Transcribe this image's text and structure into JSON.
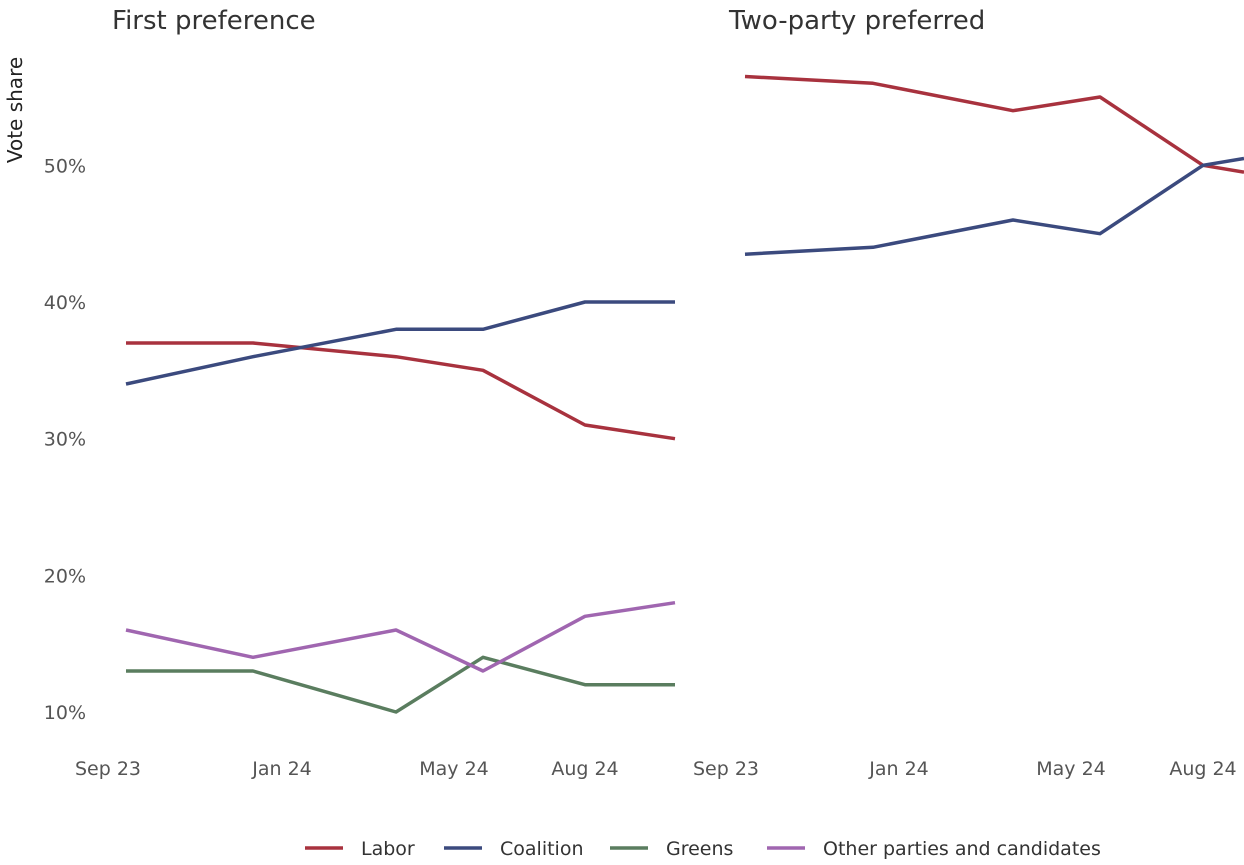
{
  "chart_data": [
    {
      "type": "line",
      "title": "First preference",
      "ylabel": "Vote share",
      "x_ticks": [
        "Sep 23",
        "Jan 24",
        "May 24",
        "Aug 24"
      ],
      "y_ticks": [
        "10%",
        "20%",
        "30%",
        "40%",
        "50%"
      ],
      "ylim": [
        9,
        58
      ],
      "grid": false,
      "series": [
        {
          "name": "Labor",
          "color": "#a8323e",
          "points": [
            [
              "2023-09-01",
              37
            ],
            [
              "2023-12-15",
              37
            ],
            [
              "2024-04-01",
              36
            ],
            [
              "2024-06-01",
              35
            ],
            [
              "2024-08-01",
              31
            ],
            [
              "2024-10-15",
              30
            ]
          ]
        },
        {
          "name": "Coalition",
          "color": "#3b4a7e",
          "points": [
            [
              "2023-09-01",
              34
            ],
            [
              "2023-12-15",
              36
            ],
            [
              "2024-04-01",
              38
            ],
            [
              "2024-06-01",
              38
            ],
            [
              "2024-08-01",
              40
            ],
            [
              "2024-10-15",
              40
            ]
          ]
        },
        {
          "name": "Greens",
          "color": "#5a7d5f",
          "points": [
            [
              "2023-09-01",
              13
            ],
            [
              "2023-12-15",
              13
            ],
            [
              "2024-04-01",
              10
            ],
            [
              "2024-06-01",
              14
            ],
            [
              "2024-08-01",
              12
            ],
            [
              "2024-10-15",
              12
            ]
          ]
        },
        {
          "name": "Other parties and candidates",
          "color": "#a066b0",
          "points": [
            [
              "2023-09-01",
              16
            ],
            [
              "2023-12-15",
              14
            ],
            [
              "2024-04-01",
              16
            ],
            [
              "2024-06-01",
              13
            ],
            [
              "2024-08-01",
              17
            ],
            [
              "2024-10-15",
              18
            ]
          ]
        }
      ]
    },
    {
      "type": "line",
      "title": "Two-party preferred",
      "x_ticks": [
        "Sep 23",
        "Jan 24",
        "May 24",
        "Aug 24"
      ],
      "ylim": [
        9,
        58
      ],
      "grid": false,
      "series": [
        {
          "name": "Labor",
          "color": "#a8323e",
          "points": [
            [
              "2023-09-01",
              56.5
            ],
            [
              "2024-01-01",
              56
            ],
            [
              "2024-04-01",
              54
            ],
            [
              "2024-06-01",
              55
            ],
            [
              "2024-08-15",
              50
            ],
            [
              "2024-10-15",
              49.5
            ]
          ]
        },
        {
          "name": "Coalition",
          "color": "#3b4a7e",
          "points": [
            [
              "2023-09-01",
              43.5
            ],
            [
              "2024-01-01",
              44
            ],
            [
              "2024-04-01",
              46
            ],
            [
              "2024-06-01",
              45
            ],
            [
              "2024-08-15",
              50
            ],
            [
              "2024-10-15",
              50.5
            ]
          ]
        }
      ]
    }
  ],
  "legend": {
    "position": "bottom",
    "items": [
      {
        "name": "Labor",
        "color": "#a8323e"
      },
      {
        "name": "Coalition",
        "color": "#3b4a7e"
      },
      {
        "name": "Greens",
        "color": "#5a7d5f"
      },
      {
        "name": "Other parties and candidates",
        "color": "#a066b0"
      }
    ]
  }
}
